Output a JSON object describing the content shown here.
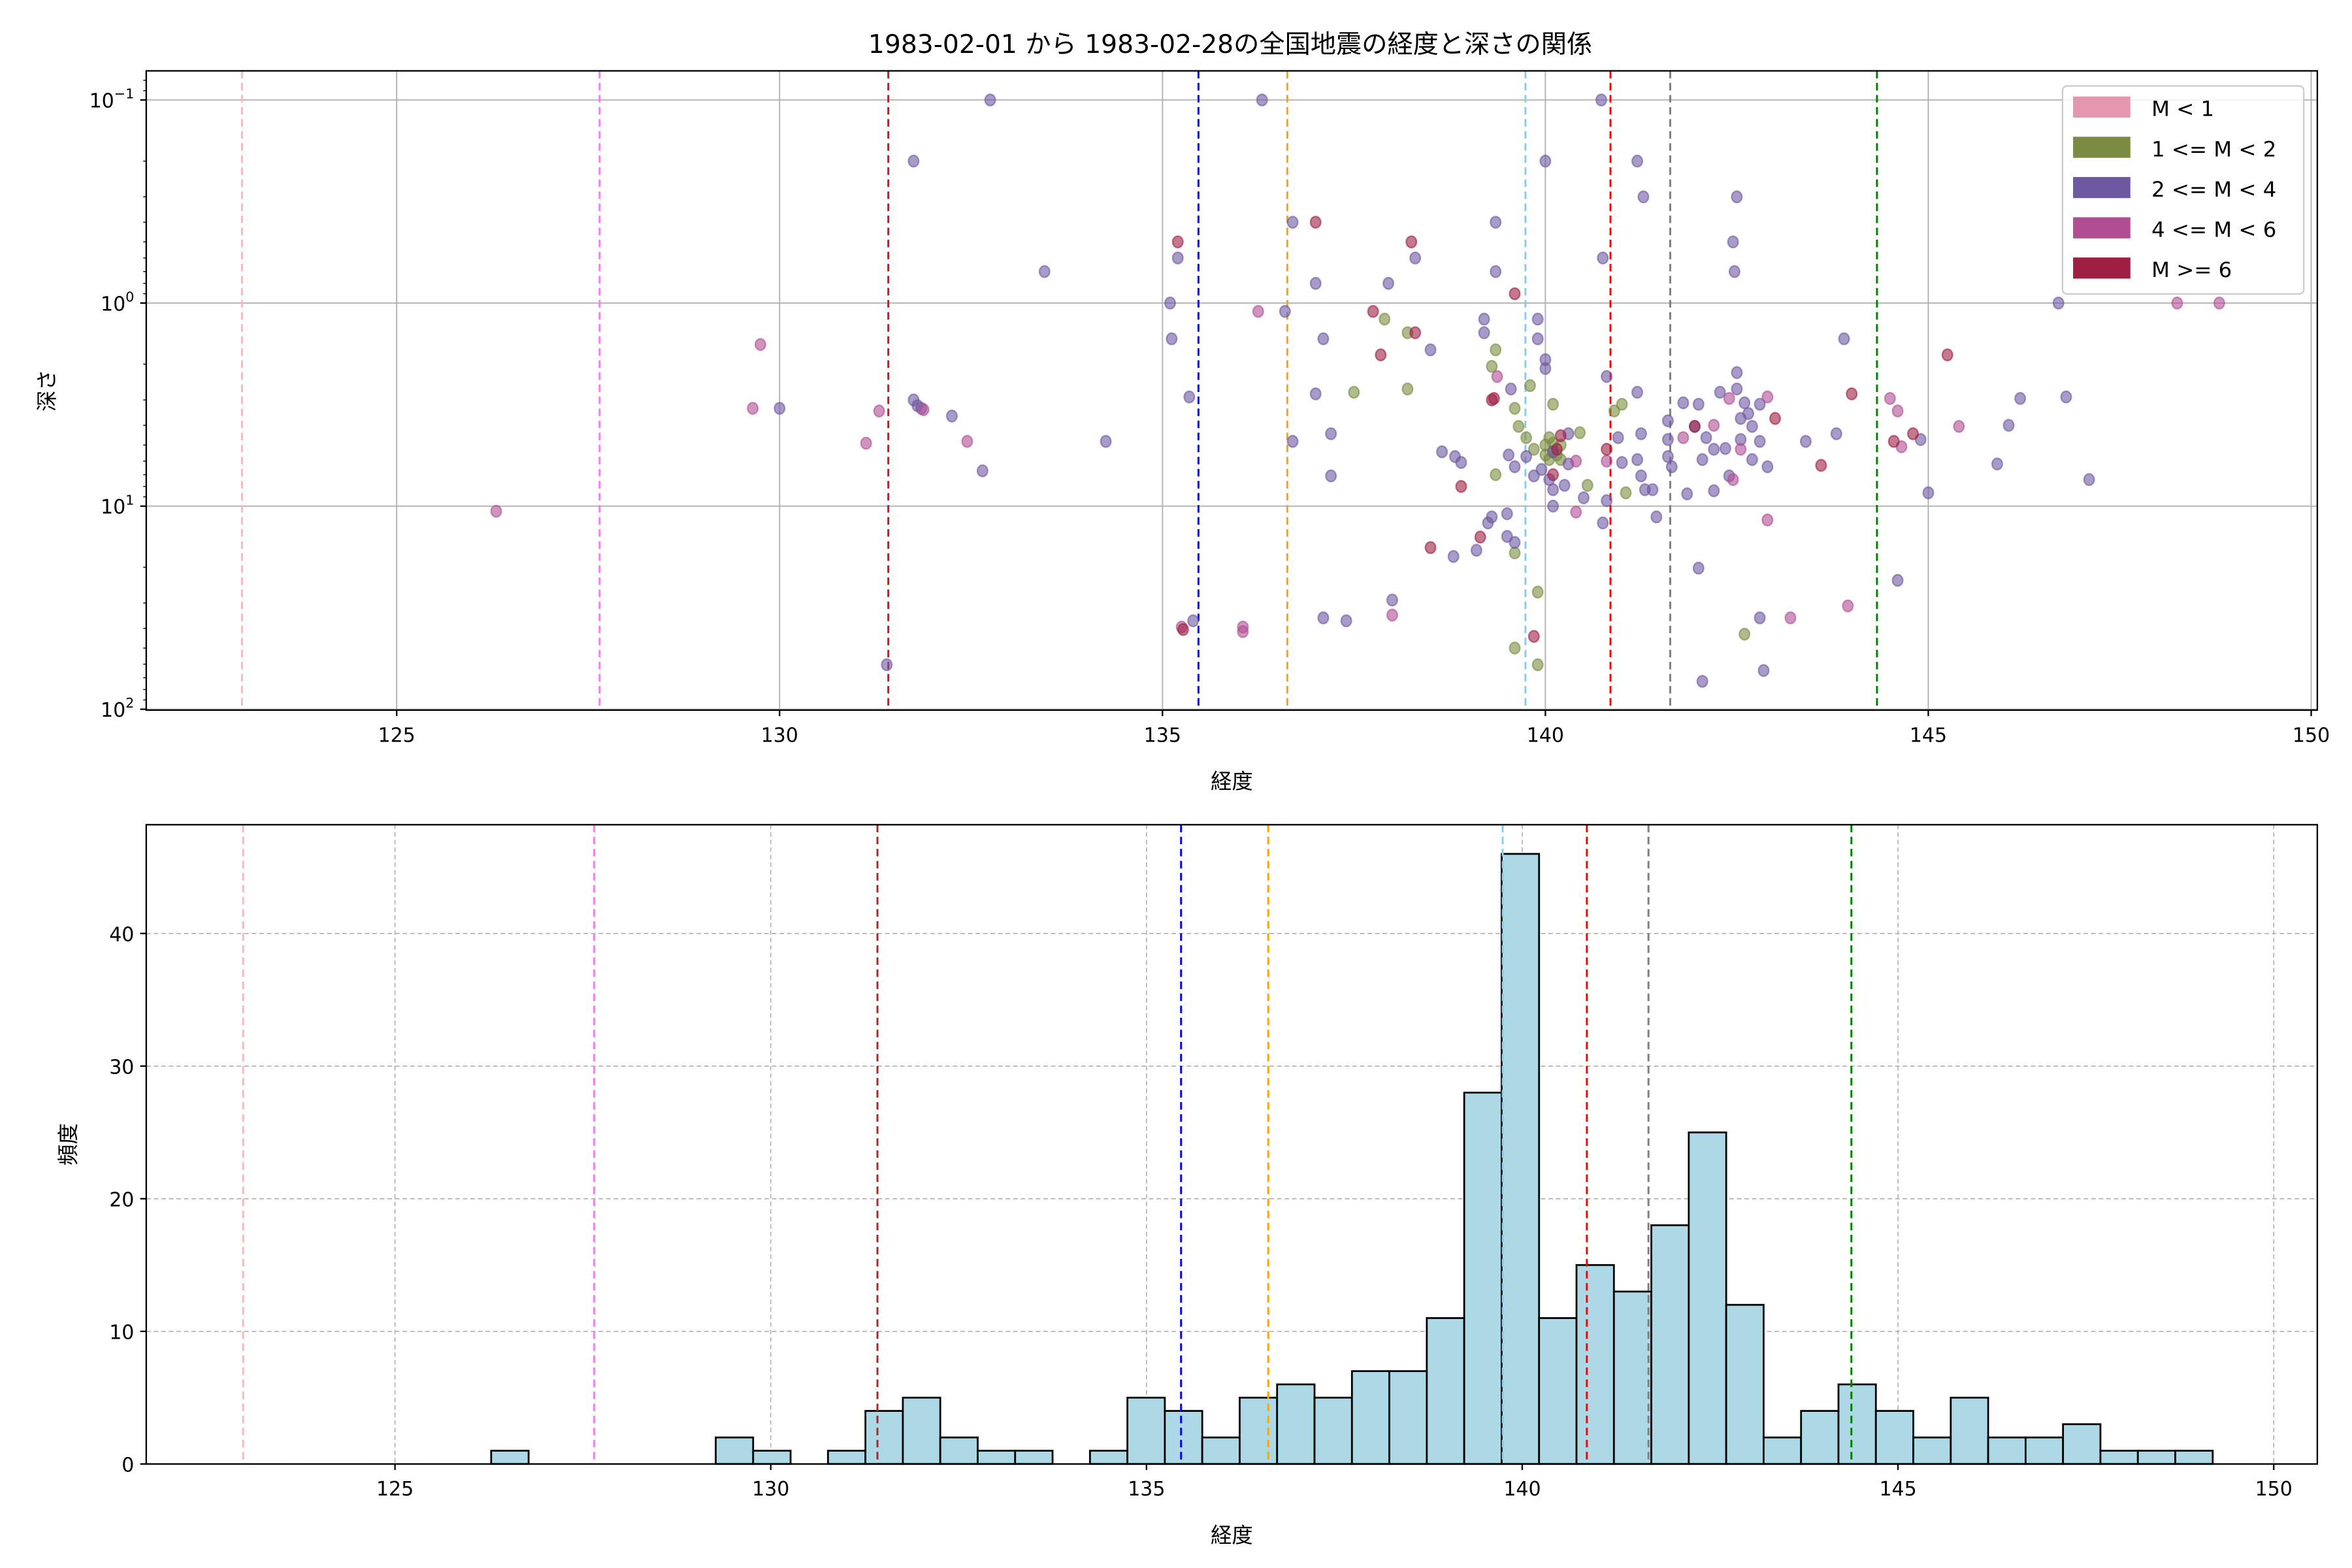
{
  "chart_data": [
    {
      "type": "scatter",
      "title": "1983-02-01 から 1983-02-28の全国地震の経度と深さの関係",
      "xlabel": "経度",
      "ylabel": "深さ",
      "xlim": [
        121.73,
        150.08
      ],
      "ylim": [
        100,
        0.073
      ],
      "yscale": "log",
      "y_inverted": true,
      "grid": true,
      "xticks": [
        125,
        130,
        135,
        140,
        145,
        150
      ],
      "xtick_labels": [
        "125",
        "130",
        "135",
        "140",
        "145",
        "150"
      ],
      "yticks": [
        0.1,
        1,
        10,
        100
      ],
      "ytick_labels": [
        {
          "base": "10",
          "exp": "−1"
        },
        {
          "base": "10",
          "exp": "0"
        },
        {
          "base": "10",
          "exp": "1"
        },
        {
          "base": "10",
          "exp": "2"
        }
      ],
      "legend_placement": "top-right",
      "legend": [
        {
          "label": "M < 1",
          "color": "#e597b0"
        },
        {
          "label": "1 <= M < 2",
          "color": "#7a8c41"
        },
        {
          "label": "2 <= M < 4",
          "color": "#6e58a1"
        },
        {
          "label": "4 <= M < 6",
          "color": "#b04e94"
        },
        {
          "label": "M >= 6",
          "color": "#9e1f42"
        }
      ],
      "vlines": [
        {
          "x": 122.98,
          "color": "#ffb6c1"
        },
        {
          "x": 127.65,
          "color": "#ee82ee"
        },
        {
          "x": 131.42,
          "color": "#a52a2a"
        },
        {
          "x": 135.47,
          "color": "#0000ff"
        },
        {
          "x": 136.63,
          "color": "#ffa500"
        },
        {
          "x": 139.74,
          "color": "#87ceeb"
        },
        {
          "x": 140.85,
          "color": "#ff0000"
        },
        {
          "x": 141.63,
          "color": "#808080"
        },
        {
          "x": 144.33,
          "color": "#008000"
        }
      ],
      "series": [
        {
          "name": "1 <= M < 2",
          "color": "#7a8c41",
          "points": [
            [
              137.9,
              1.2
            ],
            [
              138.2,
              1.4
            ],
            [
              139.35,
              1.7
            ],
            [
              139.3,
              2.05
            ],
            [
              139.8,
              2.55
            ],
            [
              139.6,
              3.3
            ],
            [
              139.65,
              4.05
            ],
            [
              137.5,
              2.75
            ],
            [
              138.2,
              2.65
            ],
            [
              140.1,
              3.15
            ],
            [
              141.0,
              3.15
            ],
            [
              139.75,
              4.6
            ],
            [
              140.0,
              5.0
            ],
            [
              140.1,
              5.4
            ],
            [
              140.05,
              5.9
            ],
            [
              140.2,
              5.0
            ],
            [
              140.45,
              4.35
            ],
            [
              139.85,
              5.25
            ],
            [
              139.35,
              7.0
            ],
            [
              140.55,
              7.9
            ],
            [
              141.05,
              8.6
            ],
            [
              140.9,
              3.4
            ],
            [
              139.6,
              17.0
            ],
            [
              139.9,
              26.5
            ],
            [
              139.6,
              50
            ],
            [
              139.9,
              60.4
            ],
            [
              142.6,
              42.7
            ],
            [
              140.2,
              5.9
            ],
            [
              140.05,
              4.6
            ],
            [
              140.15,
              5.6
            ],
            [
              140.0,
              5.6
            ],
            [
              140.1,
              4.9
            ]
          ]
        },
        {
          "name": "2 <= M < 4",
          "color": "#6e58a1",
          "points": [
            [
              132.75,
              0.1
            ],
            [
              136.3,
              0.1
            ],
            [
              140.73,
              0.1
            ],
            [
              131.75,
              0.2
            ],
            [
              140.0,
              0.2
            ],
            [
              141.2,
              0.2
            ],
            [
              141.28,
              0.3
            ],
            [
              142.5,
              0.3
            ],
            [
              136.7,
              0.4
            ],
            [
              139.35,
              0.4
            ],
            [
              142.45,
              0.5
            ],
            [
              135.2,
              0.6
            ],
            [
              138.3,
              0.6
            ],
            [
              140.75,
              0.6
            ],
            [
              133.46,
              0.7
            ],
            [
              139.35,
              0.7
            ],
            [
              142.47,
              0.7
            ],
            [
              135.1,
              1.0
            ],
            [
              146.7,
              1.0
            ],
            [
              137.0,
              0.8
            ],
            [
              137.95,
              0.8
            ],
            [
              136.6,
              1.1
            ],
            [
              139.2,
              1.2
            ],
            [
              139.9,
              1.2
            ],
            [
              135.12,
              1.5
            ],
            [
              137.1,
              1.5
            ],
            [
              139.2,
              1.4
            ],
            [
              139.9,
              1.5
            ],
            [
              138.5,
              1.7
            ],
            [
              140.0,
              1.9
            ],
            [
              140.0,
              2.1
            ],
            [
              143.9,
              1.5
            ],
            [
              142.5,
              2.2
            ],
            [
              140.8,
              2.3
            ],
            [
              135.35,
              2.9
            ],
            [
              137.0,
              2.8
            ],
            [
              139.55,
              2.65
            ],
            [
              141.2,
              2.75
            ],
            [
              142.28,
              2.75
            ],
            [
              142.5,
              2.65
            ],
            [
              131.75,
              3.0
            ],
            [
              131.8,
              3.2
            ],
            [
              131.85,
              3.3
            ],
            [
              130.0,
              3.3
            ],
            [
              132.25,
              3.6
            ],
            [
              141.8,
              3.1
            ],
            [
              142.0,
              3.15
            ],
            [
              142.6,
              3.1
            ],
            [
              142.8,
              3.15
            ],
            [
              146.2,
              2.95
            ],
            [
              146.8,
              2.9
            ],
            [
              141.6,
              3.8
            ],
            [
              141.95,
              4.05
            ],
            [
              142.55,
              3.7
            ],
            [
              142.7,
              4.05
            ],
            [
              146.05,
              4.0
            ],
            [
              137.2,
              4.4
            ],
            [
              134.26,
              4.8
            ],
            [
              136.7,
              4.8
            ],
            [
              140.3,
              4.4
            ],
            [
              140.95,
              4.6
            ],
            [
              141.25,
              4.4
            ],
            [
              141.6,
              4.7
            ],
            [
              142.1,
              4.6
            ],
            [
              142.55,
              4.7
            ],
            [
              142.8,
              4.8
            ],
            [
              143.4,
              4.8
            ],
            [
              143.8,
              4.4
            ],
            [
              144.9,
              4.7
            ],
            [
              142.2,
              5.25
            ],
            [
              141.6,
              5.7
            ],
            [
              141.2,
              5.9
            ],
            [
              142.05,
              5.9
            ],
            [
              142.7,
              5.9
            ],
            [
              138.65,
              5.4
            ],
            [
              138.82,
              5.7
            ],
            [
              138.9,
              6.1
            ],
            [
              139.52,
              5.6
            ],
            [
              139.6,
              6.4
            ],
            [
              139.75,
              5.7
            ],
            [
              140.1,
              5.4
            ],
            [
              140.3,
              6.2
            ],
            [
              141.0,
              6.1
            ],
            [
              141.65,
              6.4
            ],
            [
              142.9,
              6.4
            ],
            [
              137.2,
              7.1
            ],
            [
              145.9,
              6.2
            ],
            [
              139.85,
              7.1
            ],
            [
              140.25,
              7.9
            ],
            [
              141.25,
              7.1
            ],
            [
              142.4,
              7.1
            ],
            [
              132.65,
              6.7
            ],
            [
              140.1,
              8.3
            ],
            [
              141.3,
              8.3
            ],
            [
              141.4,
              8.3
            ],
            [
              142.2,
              8.4
            ],
            [
              140.5,
              9.1
            ],
            [
              140.8,
              9.4
            ],
            [
              140.1,
              10
            ],
            [
              141.85,
              8.7
            ],
            [
              145.0,
              8.6
            ],
            [
              147.1,
              7.4
            ],
            [
              141.45,
              11.3
            ],
            [
              139.3,
              11.3
            ],
            [
              139.25,
              12.1
            ],
            [
              139.5,
              10.9
            ],
            [
              140.75,
              12.1
            ],
            [
              139.6,
              15.1
            ],
            [
              139.1,
              16.5
            ],
            [
              138.8,
              17.7
            ],
            [
              142.0,
              20.2
            ],
            [
              144.6,
              23.2
            ],
            [
              138.0,
              29
            ],
            [
              137.1,
              35.5
            ],
            [
              137.4,
              36.7
            ],
            [
              135.4,
              36.7
            ],
            [
              142.8,
              35.5
            ],
            [
              131.4,
              60.4
            ],
            [
              142.85,
              64.5
            ],
            [
              142.05,
              72.9
            ],
            [
              139.5,
              14.1
            ],
            [
              139.95,
              6.6
            ],
            [
              140.05,
              7.4
            ],
            [
              142.35,
              5.2
            ],
            [
              142.65,
              3.5
            ]
          ]
        },
        {
          "name": "4 <= M < 6",
          "color": "#b04e94",
          "points": [
            [
              129.75,
              1.6
            ],
            [
              129.65,
              3.3
            ],
            [
              131.3,
              3.4
            ],
            [
              131.88,
              3.35
            ],
            [
              131.13,
              4.9
            ],
            [
              132.45,
              4.8
            ],
            [
              126.3,
              10.6
            ],
            [
              136.25,
              1.1
            ],
            [
              139.37,
              2.3
            ],
            [
              140.4,
              6.0
            ],
            [
              140.4,
              10.7
            ],
            [
              141.8,
              4.6
            ],
            [
              142.2,
              4.0
            ],
            [
              142.4,
              2.95
            ],
            [
              142.55,
              5.25
            ],
            [
              142.9,
              2.9
            ],
            [
              142.45,
              7.4
            ],
            [
              142.9,
              11.7
            ],
            [
              143.2,
              35.5
            ],
            [
              143.95,
              31
            ],
            [
              144.5,
              2.95
            ],
            [
              144.6,
              3.4
            ],
            [
              144.65,
              5.1
            ],
            [
              145.4,
              4.05
            ],
            [
              148.25,
              1.0
            ],
            [
              148.8,
              1.0
            ],
            [
              136.05,
              39.4
            ],
            [
              136.05,
              41.5
            ],
            [
              138.0,
              34.4
            ],
            [
              135.25,
              39.4
            ],
            [
              140.8,
              6.0
            ]
          ]
        },
        {
          "name": "M >= 6",
          "color": "#9e1f42",
          "points": [
            [
              135.2,
              0.5
            ],
            [
              137.0,
              0.4
            ],
            [
              138.25,
              0.5
            ],
            [
              139.6,
              0.9
            ],
            [
              137.75,
              1.1
            ],
            [
              138.3,
              1.4
            ],
            [
              137.85,
              1.8
            ],
            [
              145.25,
              1.8
            ],
            [
              139.3,
              3.0
            ],
            [
              139.33,
              2.95
            ],
            [
              144.0,
              2.8
            ],
            [
              143.0,
              3.7
            ],
            [
              140.2,
              4.5
            ],
            [
              141.95,
              4.05
            ],
            [
              144.55,
              4.8
            ],
            [
              144.8,
              4.4
            ],
            [
              143.6,
              6.3
            ],
            [
              138.9,
              8.0
            ],
            [
              140.1,
              7.0
            ],
            [
              140.15,
              5.25
            ],
            [
              138.5,
              16.0
            ],
            [
              139.15,
              14.2
            ],
            [
              139.85,
              43.8
            ],
            [
              135.27,
              40.5
            ],
            [
              140.8,
              5.25
            ]
          ]
        }
      ]
    },
    {
      "type": "bar",
      "subtype": "histogram",
      "xlabel": "経度",
      "ylabel": "頻度",
      "xlim": [
        121.69,
        150.58
      ],
      "ylim": [
        0,
        48.2
      ],
      "grid": true,
      "bar_color": "#add8e6",
      "xticks": [
        125,
        130,
        135,
        140,
        145,
        150
      ],
      "xtick_labels": [
        "125",
        "130",
        "135",
        "140",
        "145",
        "150"
      ],
      "yticks": [
        0,
        10,
        20,
        30,
        40
      ],
      "ytick_labels": [
        "0",
        "10",
        "20",
        "30",
        "40"
      ],
      "bin_start": 126.28,
      "bin_width": 0.498,
      "values": [
        1,
        0,
        0,
        0,
        0,
        0,
        2,
        1,
        0,
        1,
        4,
        5,
        2,
        1,
        1,
        0,
        1,
        5,
        4,
        2,
        5,
        6,
        5,
        7,
        7,
        11,
        28,
        46,
        11,
        15,
        13,
        18,
        25,
        12,
        2,
        4,
        6,
        4,
        2,
        5,
        2,
        2,
        3,
        1,
        1,
        1
      ],
      "vlines": [
        {
          "x": 122.98,
          "color": "#ffb6c1"
        },
        {
          "x": 127.65,
          "color": "#ee82ee"
        },
        {
          "x": 131.42,
          "color": "#a52a2a"
        },
        {
          "x": 135.46,
          "color": "#0000ff"
        },
        {
          "x": 136.62,
          "color": "#ffa500"
        },
        {
          "x": 139.74,
          "color": "#87ceeb"
        },
        {
          "x": 140.86,
          "color": "#ff0000"
        },
        {
          "x": 141.68,
          "color": "#808080"
        },
        {
          "x": 144.38,
          "color": "#008000"
        }
      ]
    }
  ]
}
